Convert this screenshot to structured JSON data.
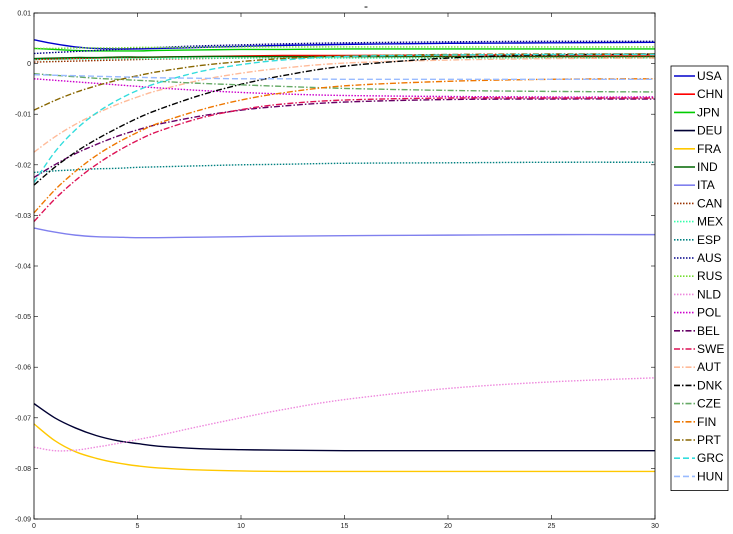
{
  "chart_data": {
    "type": "line",
    "title": "-",
    "xlabel": "",
    "ylabel": "",
    "xlim": [
      0,
      30
    ],
    "ylim": [
      -0.09,
      0.01
    ],
    "xticks": [
      0,
      5,
      10,
      15,
      20,
      25,
      30
    ],
    "xtick_labels": [
      "0",
      "5",
      "10",
      "15",
      "20",
      "25",
      "30"
    ],
    "yticks": [
      0.01,
      0,
      -0.01,
      -0.02,
      -0.03,
      -0.04,
      -0.05,
      -0.06,
      -0.07,
      -0.08,
      -0.09
    ],
    "ytick_labels": [
      "0.01",
      "0",
      "-0.01",
      "-0.02",
      "-0.03",
      "-0.04",
      "-0.05",
      "-0.06",
      "-0.07",
      "-0.08",
      "-0.09"
    ],
    "grid": false,
    "legend_position": "outside-right",
    "x": [
      0,
      1,
      2,
      3,
      4,
      5,
      6,
      8,
      10,
      12,
      15,
      20,
      25,
      30
    ],
    "series": [
      {
        "name": "USA",
        "color": "#0000cc",
        "dash": "",
        "values": [
          0.0047,
          0.0039,
          0.0033,
          0.003,
          0.0029,
          0.0029,
          0.003,
          0.0032,
          0.0034,
          0.0036,
          0.0038,
          0.004,
          0.0041,
          0.0042
        ]
      },
      {
        "name": "CHN",
        "color": "#ff0000",
        "dash": "",
        "values": [
          0.0008,
          0.0009,
          0.001,
          0.0011,
          0.0012,
          0.0012,
          0.0013,
          0.0014,
          0.0015,
          0.0016,
          0.0016,
          0.0017,
          0.0017,
          0.0017
        ]
      },
      {
        "name": "JPN",
        "color": "#00cc00",
        "dash": "",
        "values": [
          0.003,
          0.0028,
          0.0026,
          0.0025,
          0.0025,
          0.0025,
          0.0026,
          0.0027,
          0.0028,
          0.0028,
          0.0029,
          0.0029,
          0.0029,
          0.0029
        ]
      },
      {
        "name": "DEU",
        "color": "#000033",
        "dash": "",
        "values": [
          -0.0672,
          -0.07,
          -0.072,
          -0.0735,
          -0.0745,
          -0.0751,
          -0.0756,
          -0.0761,
          -0.0763,
          -0.0764,
          -0.0765,
          -0.0765,
          -0.0765,
          -0.0765
        ]
      },
      {
        "name": "FRA",
        "color": "#ffc800",
        "dash": "",
        "values": [
          -0.0712,
          -0.0745,
          -0.0767,
          -0.078,
          -0.0789,
          -0.0795,
          -0.0799,
          -0.0803,
          -0.0805,
          -0.0806,
          -0.0806,
          -0.0806,
          -0.0806,
          -0.0806
        ]
      },
      {
        "name": "IND",
        "color": "#006600",
        "dash": "",
        "values": [
          0.001,
          0.0011,
          0.0012,
          0.0012,
          0.0013,
          0.0013,
          0.0013,
          0.0014,
          0.0014,
          0.0014,
          0.0014,
          0.0014,
          0.0014,
          0.0014
        ]
      },
      {
        "name": "ITA",
        "color": "#8080ee",
        "dash": "",
        "values": [
          -0.0325,
          -0.0333,
          -0.0339,
          -0.0342,
          -0.0343,
          -0.0344,
          -0.0344,
          -0.0343,
          -0.0342,
          -0.0341,
          -0.034,
          -0.0339,
          -0.0338,
          -0.0338
        ]
      },
      {
        "name": "CAN",
        "color": "#993300",
        "dash": "1.5,1.5",
        "values": [
          0.0003,
          0.0004,
          0.0005,
          0.0006,
          0.0007,
          0.0008,
          0.0009,
          0.001,
          0.0011,
          0.0012,
          0.0012,
          0.0013,
          0.0013,
          0.0013
        ]
      },
      {
        "name": "MEX",
        "color": "#33ffaa",
        "dash": "1.5,1.5",
        "values": [
          0.0008,
          0.0008,
          0.0009,
          0.0009,
          0.001,
          0.001,
          0.001,
          0.0011,
          0.0011,
          0.0011,
          0.0011,
          0.0011,
          0.0011,
          0.0011
        ]
      },
      {
        "name": "ESP",
        "color": "#008080",
        "dash": "1.5,1.5",
        "values": [
          -0.0215,
          -0.0212,
          -0.021,
          -0.0208,
          -0.0207,
          -0.0205,
          -0.0204,
          -0.0202,
          -0.02,
          -0.0199,
          -0.0197,
          -0.0196,
          -0.0195,
          -0.0195
        ]
      },
      {
        "name": "AUS",
        "color": "#000088",
        "dash": "1.5,1.5",
        "values": [
          0.002,
          0.0022,
          0.0024,
          0.0026,
          0.0028,
          0.003,
          0.0032,
          0.0035,
          0.0037,
          0.0039,
          0.0041,
          0.0043,
          0.0044,
          0.0044
        ]
      },
      {
        "name": "RUS",
        "color": "#77dd33",
        "dash": "1.5,1.5",
        "values": [
          0.003,
          0.003,
          0.0031,
          0.0031,
          0.0031,
          0.0032,
          0.0032,
          0.0032,
          0.0033,
          0.0033,
          0.0033,
          0.0033,
          0.0033,
          0.0033
        ]
      },
      {
        "name": "NLD",
        "color": "#ee88dd",
        "dash": "1.5,1.5",
        "values": [
          -0.0758,
          -0.0765,
          -0.0764,
          -0.0758,
          -0.0751,
          -0.0743,
          -0.0735,
          -0.0717,
          -0.07,
          -0.0684,
          -0.0664,
          -0.0642,
          -0.0629,
          -0.0621
        ]
      },
      {
        "name": "POL",
        "color": "#cc00cc",
        "dash": "1.5,1.5",
        "values": [
          -0.003,
          -0.0033,
          -0.0036,
          -0.0039,
          -0.0042,
          -0.0045,
          -0.0048,
          -0.0053,
          -0.0057,
          -0.006,
          -0.0063,
          -0.0065,
          -0.0066,
          -0.0066
        ]
      },
      {
        "name": "BEL",
        "color": "#660066",
        "dash": "6,2,1.5,2",
        "values": [
          -0.0225,
          -0.02,
          -0.0178,
          -0.016,
          -0.0144,
          -0.0131,
          -0.012,
          -0.0104,
          -0.0092,
          -0.0084,
          -0.0076,
          -0.0071,
          -0.007,
          -0.007
        ]
      },
      {
        "name": "SWE",
        "color": "#dd1155",
        "dash": "6,2,1.5,2",
        "values": [
          -0.0312,
          -0.0268,
          -0.0231,
          -0.02,
          -0.0174,
          -0.0152,
          -0.0134,
          -0.0108,
          -0.0091,
          -0.008,
          -0.0072,
          -0.0068,
          -0.0068,
          -0.0068
        ]
      },
      {
        "name": "AUT",
        "color": "#ffbb99",
        "dash": "6,2,1.5,2",
        "values": [
          -0.0175,
          -0.0145,
          -0.012,
          -0.0099,
          -0.0081,
          -0.0066,
          -0.0053,
          -0.0033,
          -0.0019,
          -0.0009,
          0.0001,
          0.0007,
          0.001,
          0.0011
        ]
      },
      {
        "name": "DNK",
        "color": "#000000",
        "dash": "6,2,1.5,2",
        "values": [
          -0.024,
          -0.0205,
          -0.0175,
          -0.015,
          -0.0128,
          -0.0108,
          -0.0091,
          -0.0063,
          -0.0041,
          -0.0024,
          -0.0005,
          0.0011,
          0.0017,
          0.0019
        ]
      },
      {
        "name": "CZE",
        "color": "#66aa66",
        "dash": "6,2,1.5,2",
        "values": [
          -0.002,
          -0.0023,
          -0.0026,
          -0.0029,
          -0.0031,
          -0.0033,
          -0.0035,
          -0.0039,
          -0.0042,
          -0.0045,
          -0.0049,
          -0.0053,
          -0.0055,
          -0.0056
        ]
      },
      {
        "name": "FIN",
        "color": "#ee7700",
        "dash": "6,2,1.5,2",
        "values": [
          -0.0295,
          -0.025,
          -0.0213,
          -0.0182,
          -0.0157,
          -0.0136,
          -0.0118,
          -0.0092,
          -0.0072,
          -0.0058,
          -0.0044,
          -0.0035,
          -0.0031,
          -0.003
        ]
      },
      {
        "name": "PRT",
        "color": "#886600",
        "dash": "6,2,1.5,2",
        "values": [
          -0.0092,
          -0.0073,
          -0.0057,
          -0.0044,
          -0.0033,
          -0.0024,
          -0.0016,
          -0.0004,
          0.0004,
          0.001,
          0.0015,
          0.0018,
          0.0019,
          0.0019
        ]
      },
      {
        "name": "GRC",
        "color": "#33dddd",
        "dash": "6,3",
        "values": [
          -0.0235,
          -0.0175,
          -0.0131,
          -0.0098,
          -0.0073,
          -0.0053,
          -0.0038,
          -0.0016,
          -0.0002,
          0.0007,
          0.0014,
          0.0017,
          0.0018,
          0.0018
        ]
      },
      {
        "name": "HUN",
        "color": "#99bbff",
        "dash": "6,3",
        "values": [
          -0.0022,
          -0.0023,
          -0.0024,
          -0.0025,
          -0.0026,
          -0.0027,
          -0.0028,
          -0.0029,
          -0.003,
          -0.003,
          -0.0031,
          -0.0031,
          -0.0031,
          -0.0031
        ]
      }
    ]
  }
}
